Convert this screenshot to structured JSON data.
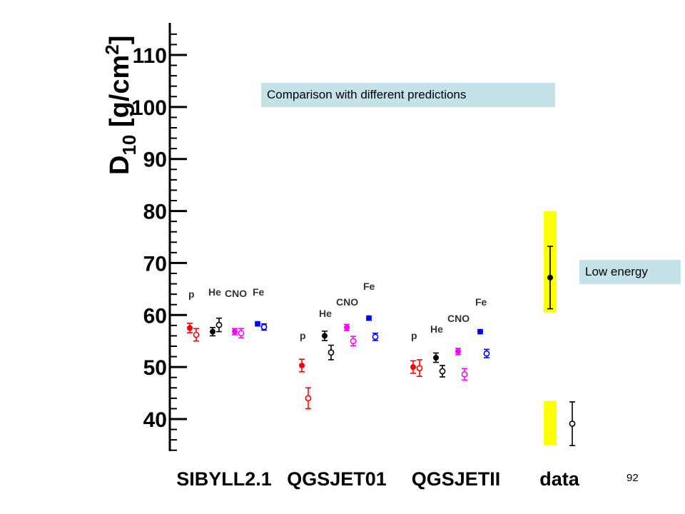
{
  "annotations": {
    "title_box": "Comparison with different predictions",
    "low_energy_box": "Low energy"
  },
  "page_number": "92",
  "chart_data": {
    "type": "scatter",
    "ylabel_main": "D",
    "ylabel_sub": "10",
    "ylabel_unit": " [g/cm",
    "ylabel_exp": "2",
    "ylabel_close": "]",
    "ylim": [
      32,
      115
    ],
    "yticks": [
      40,
      50,
      60,
      70,
      80,
      90,
      100,
      110
    ],
    "grid": false,
    "groups": [
      {
        "label": "SIBYLL2.1",
        "components": [
          {
            "name": "p",
            "color": "#ff0000",
            "full": {
              "y": 57.5,
              "err": 0.9
            },
            "open": {
              "y": 56.2,
              "err": 1.2
            }
          },
          {
            "name": "He",
            "color": "#000000",
            "full": {
              "y": 56.8,
              "err": 0.8
            },
            "open": {
              "y": 58.1,
              "err": 1.3
            }
          },
          {
            "name": "CNO",
            "color": "#ff00ff",
            "full": {
              "y": 56.8,
              "err": 0.6
            },
            "open": {
              "y": 56.5,
              "err": 0.9
            }
          },
          {
            "name": "Fe",
            "color": "#0000ff",
            "full": {
              "y": 58.3,
              "err": 0.4
            },
            "open": {
              "y": 57.7,
              "err": 0.6
            }
          }
        ]
      },
      {
        "label": "QGSJET01",
        "components": [
          {
            "name": "p",
            "color": "#ff0000",
            "full": {
              "y": 50.3,
              "err": 1.2
            },
            "open": {
              "y": 44.0,
              "err": 2.0
            }
          },
          {
            "name": "He",
            "color": "#000000",
            "full": {
              "y": 56.0,
              "err": 0.9
            },
            "open": {
              "y": 52.8,
              "err": 1.4
            }
          },
          {
            "name": "CNO",
            "color": "#ff00ff",
            "full": {
              "y": 57.6,
              "err": 0.6
            },
            "open": {
              "y": 55.0,
              "err": 0.9
            }
          },
          {
            "name": "Fe",
            "color": "#0000ff",
            "full": {
              "y": 59.4,
              "err": 0.4
            },
            "open": {
              "y": 55.8,
              "err": 0.7
            }
          }
        ]
      },
      {
        "label": "QGSJETII",
        "components": [
          {
            "name": "p",
            "color": "#ff0000",
            "full": {
              "y": 50.0,
              "err": 1.2
            },
            "open": {
              "y": 49.8,
              "err": 1.6
            }
          },
          {
            "name": "He",
            "color": "#000000",
            "full": {
              "y": 51.8,
              "err": 0.9
            },
            "open": {
              "y": 49.2,
              "err": 1.1
            }
          },
          {
            "name": "CNO",
            "color": "#ff00ff",
            "full": {
              "y": 53.0,
              "err": 0.6
            },
            "open": {
              "y": 48.6,
              "err": 1.1
            }
          },
          {
            "name": "Fe",
            "color": "#0000ff",
            "full": {
              "y": 56.8,
              "err": 0.4
            },
            "open": {
              "y": 52.6,
              "err": 0.8
            }
          }
        ]
      },
      {
        "label": "data",
        "components": [
          {
            "name": "",
            "color": "#000000",
            "full": {
              "y": 67.2,
              "err": 6.0
            },
            "open": {
              "y": 39.1,
              "err": 4.2
            }
          }
        ],
        "bands": [
          {
            "low": 60.5,
            "high": 80.0,
            "color": "#ffff00"
          },
          {
            "low": 35.0,
            "high": 43.5,
            "color": "#ffff00"
          }
        ]
      }
    ]
  }
}
